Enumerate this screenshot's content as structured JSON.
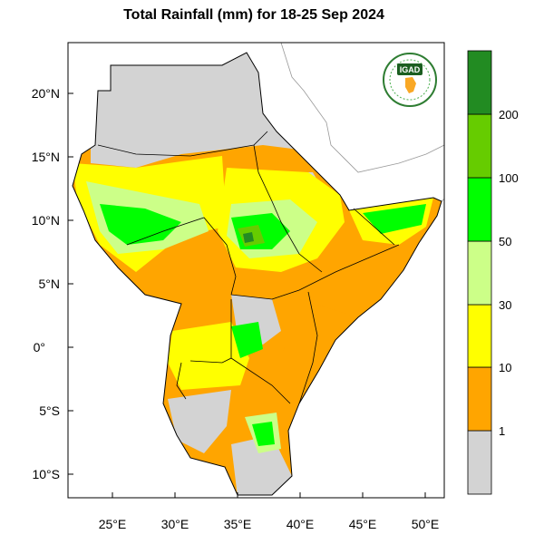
{
  "title": "Total Rainfall (mm) for 18-25 Sep 2024",
  "logo": {
    "text": "IGAD"
  },
  "map": {
    "lat_ticks": [
      "20°N",
      "15°N",
      "10°N",
      "5°N",
      "0°",
      "5°S",
      "10°S"
    ],
    "lon_ticks": [
      "25°E",
      "30°E",
      "35°E",
      "40°E",
      "45°E",
      "50°E"
    ]
  },
  "colorbar": {
    "colors": [
      "#d3d3d3",
      "#ffa500",
      "#ffff00",
      "#ccff88",
      "#00ff00",
      "#66cc00",
      "#228b22"
    ],
    "labels": [
      "1",
      "10",
      "30",
      "50",
      "100",
      "200"
    ]
  },
  "palette": {
    "gray": "#d3d3d3",
    "orange": "#ffa500",
    "yellow": "#ffff00",
    "lightgreen": "#ccff88",
    "green": "#00ff00",
    "midgreen": "#66cc00",
    "darkgreen": "#228b22"
  }
}
